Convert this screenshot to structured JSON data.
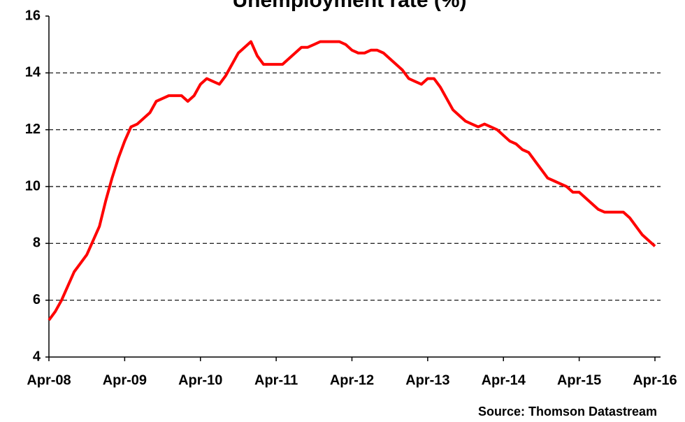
{
  "chart_data": {
    "type": "line",
    "title": "Unemployment rate (%)",
    "source": "Source: Thomson Datastream",
    "categories": [
      "Apr-08",
      null,
      null,
      null,
      null,
      null,
      null,
      null,
      null,
      null,
      null,
      null,
      "Apr-09",
      null,
      null,
      null,
      null,
      null,
      null,
      null,
      null,
      null,
      null,
      null,
      "Apr-10",
      null,
      null,
      null,
      null,
      null,
      null,
      null,
      null,
      null,
      null,
      null,
      "Apr-11",
      null,
      null,
      null,
      null,
      null,
      null,
      null,
      null,
      null,
      null,
      null,
      "Apr-12",
      null,
      null,
      null,
      null,
      null,
      null,
      null,
      null,
      null,
      null,
      null,
      "Apr-13",
      null,
      null,
      null,
      null,
      null,
      null,
      null,
      null,
      null,
      null,
      null,
      "Apr-14",
      null,
      null,
      null,
      null,
      null,
      null,
      null,
      null,
      null,
      null,
      null,
      "Apr-15",
      null,
      null,
      null,
      null,
      null,
      null,
      null,
      null,
      null,
      null,
      null,
      "Apr-16"
    ],
    "series": [
      {
        "name": "Unemployment rate",
        "color": "#ff0000",
        "values": [
          5.3,
          5.6,
          6.0,
          6.5,
          7.0,
          7.3,
          7.6,
          8.1,
          8.6,
          9.5,
          10.3,
          11.0,
          11.6,
          12.1,
          12.2,
          12.4,
          12.6,
          13.0,
          13.1,
          13.2,
          13.2,
          13.2,
          13.0,
          13.2,
          13.6,
          13.8,
          13.7,
          13.6,
          13.9,
          14.3,
          14.7,
          14.9,
          15.1,
          14.6,
          14.3,
          14.3,
          14.3,
          14.3,
          14.5,
          14.7,
          14.9,
          14.9,
          15.0,
          15.1,
          15.1,
          15.1,
          15.1,
          15.0,
          14.8,
          14.7,
          14.7,
          14.8,
          14.8,
          14.7,
          14.5,
          14.3,
          14.1,
          13.8,
          13.7,
          13.6,
          13.8,
          13.8,
          13.5,
          13.1,
          12.7,
          12.5,
          12.3,
          12.2,
          12.1,
          12.2,
          12.1,
          12.0,
          11.8,
          11.6,
          11.5,
          11.3,
          11.2,
          10.9,
          10.6,
          10.3,
          10.2,
          10.1,
          10.0,
          9.8,
          9.8,
          9.6,
          9.4,
          9.2,
          9.1,
          9.1,
          9.1,
          9.1,
          8.9,
          8.6,
          8.3,
          8.1,
          7.9
        ]
      }
    ],
    "ylim": [
      4,
      16
    ],
    "yticks": [
      4,
      6,
      8,
      10,
      12,
      14,
      16
    ],
    "grid": true
  }
}
